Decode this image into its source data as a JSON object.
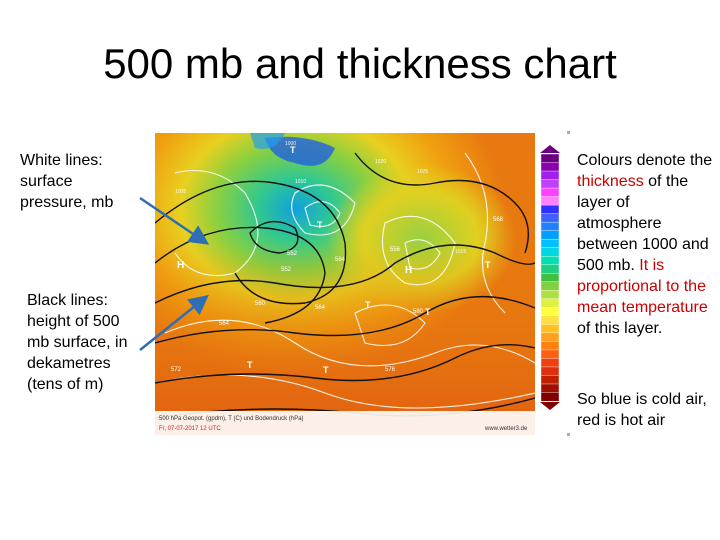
{
  "title": "500 mb and thickness chart",
  "annotations": {
    "white_lines": "White lines: surface pressure, mb",
    "black_lines": "Black lines: height of 500 mb surface, in dekametres (tens of m)",
    "colours": {
      "part1": "Colours denote the ",
      "highlight1": "thickness",
      "part2": " of the layer of atmosphere between 1000 and 500 mb. ",
      "highlight2": "It is proportional to the mean temperature",
      "part3": " of this layer."
    },
    "conclusion": "So blue is cold air, red is hot air"
  },
  "map": {
    "footer_line1": "500 hPa Geopot. (gpdm), T (C) und Bodendruck (hPa)",
    "footer_line2": "Fr, 07-07-2017 12 UTC",
    "credit": "www.wetter3.de",
    "labels": {
      "contours": [
        "552",
        "556",
        "560",
        "564",
        "568",
        "572",
        "576",
        "580",
        "584"
      ],
      "isobars": [
        "1000",
        "1005",
        "1010",
        "1015",
        "1020",
        "1025"
      ],
      "highs": [
        "H",
        "H"
      ],
      "lows": [
        "T",
        "T",
        "T",
        "T",
        "T",
        "T",
        "T"
      ]
    }
  },
  "legend": {
    "colors": [
      "#6a0080",
      "#8a00b0",
      "#a020f0",
      "#c040ff",
      "#ff40ff",
      "#ff80ff",
      "#3030ff",
      "#4060ff",
      "#2080ff",
      "#00a0ff",
      "#00c0ff",
      "#00d8e0",
      "#00e0b0",
      "#20d080",
      "#40c040",
      "#80d040",
      "#b0e040",
      "#e0f040",
      "#ffff40",
      "#ffe040",
      "#ffc020",
      "#ffa020",
      "#ff8010",
      "#ff6010",
      "#f04010",
      "#e03010",
      "#c02000",
      "#a01000",
      "#800000"
    ]
  }
}
